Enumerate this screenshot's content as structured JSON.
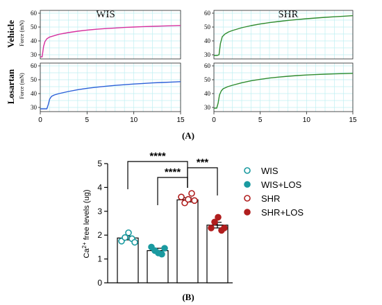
{
  "chart_data": [
    {
      "type": "line",
      "panel": "A",
      "column_titles": [
        "WIS",
        "SHR"
      ],
      "row_titles": [
        "Vehicle",
        "Losartan"
      ],
      "ylabel": "Force (mN)",
      "xlabel": "",
      "xlim": [
        0,
        15
      ],
      "x_ticks": [
        "0",
        "5",
        "10",
        "15"
      ],
      "subplots": [
        {
          "column": "WIS",
          "row": "Vehicle",
          "ylim": [
            27,
            62
          ],
          "y_ticks": [
            "30",
            "40",
            "50",
            "60"
          ],
          "color": "#d6309e",
          "x": [
            0,
            0.2,
            0.35,
            0.5,
            0.7,
            1,
            1.5,
            2,
            3,
            4,
            5,
            6,
            7,
            8,
            9,
            10,
            11,
            12,
            13,
            14,
            15
          ],
          "y": [
            28.5,
            28.5,
            36,
            39.5,
            41.5,
            42.8,
            43.8,
            44.8,
            46,
            47,
            47.8,
            48.4,
            48.9,
            49.3,
            49.7,
            50,
            50.3,
            50.5,
            50.7,
            50.9,
            51.1
          ]
        },
        {
          "column": "SHR",
          "row": "Vehicle",
          "ylim": [
            27,
            62
          ],
          "y_ticks": [
            "30",
            "40",
            "50",
            "60"
          ],
          "color": "#2e8b2e",
          "x": [
            0,
            0.35,
            0.55,
            0.7,
            0.9,
            1.2,
            1.6,
            2,
            3,
            4,
            5,
            6,
            7,
            8,
            9,
            10,
            11,
            12,
            13,
            14,
            15
          ],
          "y": [
            29.5,
            29.5,
            30,
            38,
            43,
            45,
            46.5,
            47.5,
            49.5,
            51,
            52.2,
            53.2,
            54,
            54.8,
            55.4,
            56,
            56.5,
            57,
            57.4,
            57.8,
            58.2
          ]
        },
        {
          "column": "WIS",
          "row": "Losartan",
          "ylim": [
            27,
            62
          ],
          "y_ticks": [
            "30",
            "40",
            "50",
            "60"
          ],
          "color": "#2a5fd8",
          "x": [
            0,
            0.7,
            0.85,
            1,
            1.2,
            1.5,
            2,
            3,
            4,
            5,
            6,
            7,
            8,
            9,
            10,
            11,
            12,
            13,
            14,
            15
          ],
          "y": [
            29,
            29,
            32,
            36,
            38,
            39,
            40,
            41.5,
            42.8,
            43.8,
            44.6,
            45.3,
            45.9,
            46.4,
            46.9,
            47.3,
            47.7,
            48,
            48.3,
            48.6
          ]
        },
        {
          "column": "SHR",
          "row": "Losartan",
          "ylim": [
            27,
            62
          ],
          "y_ticks": [
            "30",
            "40",
            "50",
            "60"
          ],
          "color": "#2e8b2e",
          "x": [
            0,
            0.3,
            0.45,
            0.6,
            0.8,
            1,
            1.5,
            2,
            3,
            4,
            5,
            6,
            7,
            8,
            9,
            10,
            11,
            12,
            13,
            14,
            15
          ],
          "y": [
            29.5,
            29.5,
            33,
            39,
            42,
            43.5,
            45,
            46,
            47.8,
            49.2,
            50.3,
            51.2,
            51.9,
            52.5,
            53,
            53.4,
            53.7,
            54,
            54.2,
            54.4,
            54.6
          ]
        }
      ]
    },
    {
      "type": "bar",
      "panel": "B",
      "categories": [
        "WIS",
        "WIS+LOS",
        "SHR",
        "SHR+LOS"
      ],
      "values": [
        1.88,
        1.35,
        3.48,
        2.42
      ],
      "errors": [
        0.08,
        0.1,
        0.09,
        0.12
      ],
      "points": [
        [
          1.75,
          1.9,
          2.1,
          1.85,
          1.7
        ],
        [
          1.5,
          1.35,
          1.25,
          1.2,
          1.45
        ],
        [
          3.6,
          3.35,
          3.5,
          3.75,
          3.45
        ],
        [
          2.3,
          2.55,
          2.75,
          2.2,
          2.3
        ]
      ],
      "point_colors": [
        "#1a9aa0",
        "#1a9aa0",
        "#b01e1e",
        "#b01e1e"
      ],
      "point_filled": [
        false,
        true,
        false,
        true
      ],
      "ylabel_parts": [
        "Ca",
        "2+",
        " free levels (ug)"
      ],
      "ylim": [
        0,
        5
      ],
      "y_ticks": [
        "0",
        "1",
        "2",
        "3",
        "4",
        "5"
      ],
      "significance": [
        {
          "label": "****",
          "from": "WIS",
          "to": "SHR"
        },
        {
          "label": "****",
          "from": "WIS+LOS",
          "to": "SHR"
        },
        {
          "label": "***",
          "from": "SHR",
          "to": "SHR+LOS"
        }
      ],
      "legend": [
        "WIS",
        "WIS+LOS",
        "SHR",
        "SHR+LOS"
      ],
      "legend_placement": "right"
    }
  ],
  "panel_labels": [
    "(A)",
    "(B)"
  ]
}
